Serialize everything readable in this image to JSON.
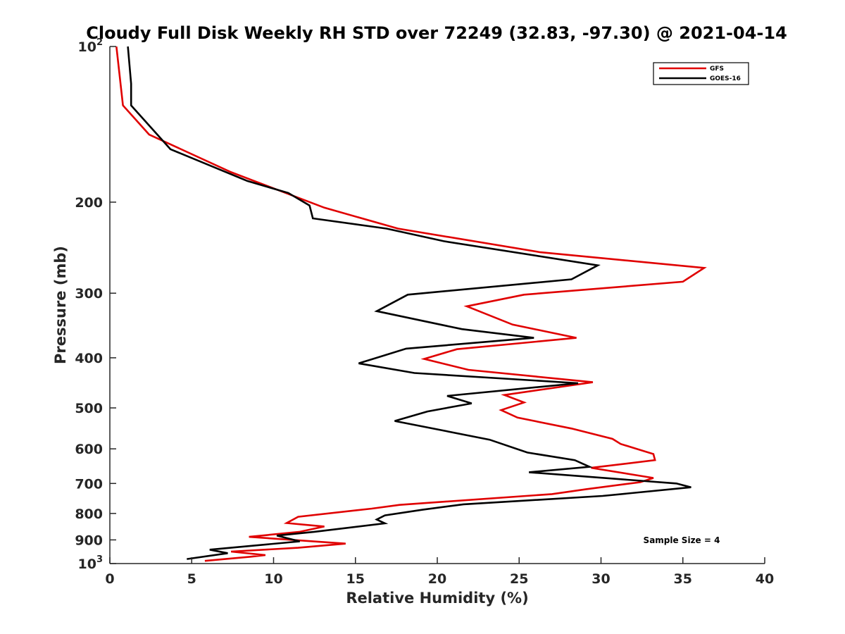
{
  "chart_data": {
    "type": "line",
    "title": "Cloudy Full Disk Weekly RH STD over 72249 (32.83, -97.30) @ 2021-04-14",
    "xlabel": "Relative Humidity (%)",
    "ylabel": "Pressure (mb)",
    "xlim": [
      0,
      40
    ],
    "ylim": [
      100,
      1000
    ],
    "y_scale": "log",
    "y_reversed": true,
    "grid": false,
    "legend_position": "top-right",
    "x_ticks": [
      0,
      5,
      10,
      15,
      20,
      25,
      30,
      35,
      40
    ],
    "y_ticks": [
      {
        "value": 100,
        "base": "10",
        "exp": "2"
      },
      {
        "value": 200,
        "label": "200"
      },
      {
        "value": 300,
        "label": "300"
      },
      {
        "value": 400,
        "label": "400"
      },
      {
        "value": 500,
        "label": "500"
      },
      {
        "value": 600,
        "label": "600"
      },
      {
        "value": 700,
        "label": "700"
      },
      {
        "value": 800,
        "label": "800"
      },
      {
        "value": 900,
        "label": "900"
      },
      {
        "value": 1000,
        "base": "10",
        "exp": "3"
      }
    ],
    "annotation": "Sample Size = 4",
    "series": [
      {
        "name": "GFS",
        "color": "#e00000",
        "points": [
          [
            0.4,
            100
          ],
          [
            0.8,
            130
          ],
          [
            2.4,
            148
          ],
          [
            7.4,
            175
          ],
          [
            13.1,
            205
          ],
          [
            17.6,
            225
          ],
          [
            26.3,
            250
          ],
          [
            36.3,
            268
          ],
          [
            35,
            285
          ],
          [
            25.3,
            302
          ],
          [
            21.8,
            318
          ],
          [
            24.6,
            345
          ],
          [
            28.5,
            366
          ],
          [
            21.2,
            385
          ],
          [
            19.2,
            402
          ],
          [
            21.9,
            422
          ],
          [
            29.5,
            446
          ],
          [
            24.1,
            472
          ],
          [
            25.3,
            488
          ],
          [
            23.9,
            505
          ],
          [
            24.9,
            522
          ],
          [
            28.2,
            548
          ],
          [
            30.7,
            574
          ],
          [
            31.2,
            587
          ],
          [
            33.2,
            614
          ],
          [
            33.3,
            631
          ],
          [
            29.4,
            653
          ],
          [
            33.2,
            683
          ],
          [
            32.4,
            696
          ],
          [
            29.1,
            718
          ],
          [
            27,
            734
          ],
          [
            17.7,
            770
          ],
          [
            16,
            783
          ],
          [
            11.5,
            812
          ],
          [
            10.8,
            835
          ],
          [
            13.1,
            848
          ],
          [
            11.6,
            868
          ],
          [
            8.5,
            888
          ],
          [
            14.4,
            915
          ],
          [
            11.5,
            932
          ],
          [
            7.4,
            948
          ],
          [
            9.5,
            963
          ],
          [
            8.6,
            970
          ],
          [
            5.8,
            988
          ]
        ]
      },
      {
        "name": "GOES-16",
        "color": "#000000",
        "points": [
          [
            1.1,
            100
          ],
          [
            1.3,
            118
          ],
          [
            1.3,
            130
          ],
          [
            3.7,
            158
          ],
          [
            8.4,
            182
          ],
          [
            10.9,
            192
          ],
          [
            12.2,
            203
          ],
          [
            12.4,
            215
          ],
          [
            16.9,
            225
          ],
          [
            20.4,
            238
          ],
          [
            29.8,
            265
          ],
          [
            28.2,
            282
          ],
          [
            18.2,
            302
          ],
          [
            16.3,
            325
          ],
          [
            21.5,
            352
          ],
          [
            25.9,
            366
          ],
          [
            18.1,
            384
          ],
          [
            15.2,
            410
          ],
          [
            18.6,
            428
          ],
          [
            28.6,
            448
          ],
          [
            20.6,
            474
          ],
          [
            22.1,
            490
          ],
          [
            19.4,
            508
          ],
          [
            17.4,
            530
          ],
          [
            23.2,
            576
          ],
          [
            25.5,
            610
          ],
          [
            28.4,
            631
          ],
          [
            29.3,
            650
          ],
          [
            25.6,
            666
          ],
          [
            34.6,
            700
          ],
          [
            35.5,
            712
          ],
          [
            30.1,
            740
          ],
          [
            21.6,
            768
          ],
          [
            19.1,
            787
          ],
          [
            16.8,
            807
          ],
          [
            16.3,
            822
          ],
          [
            16.8,
            836
          ],
          [
            12.5,
            868
          ],
          [
            10.2,
            883
          ],
          [
            11.6,
            906
          ],
          [
            6.1,
            940
          ],
          [
            7.2,
            955
          ],
          [
            4.7,
            980
          ]
        ]
      }
    ]
  }
}
